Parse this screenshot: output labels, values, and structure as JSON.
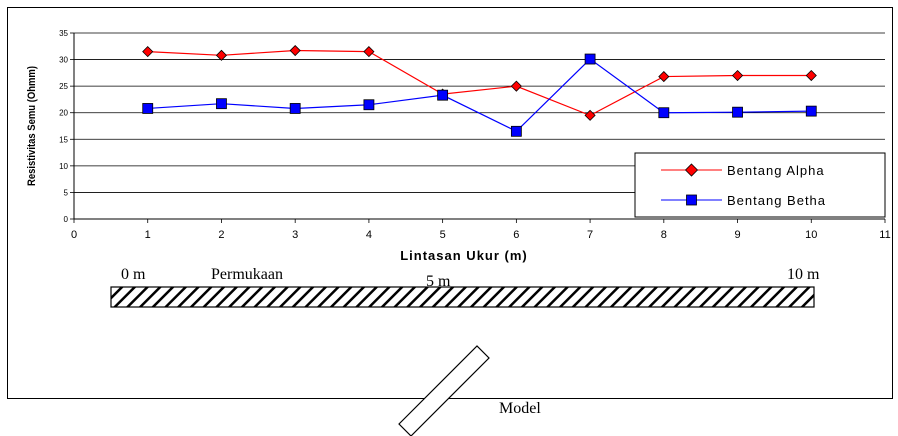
{
  "chart_data": {
    "type": "line",
    "xlabel": "Lintasan Ukur (m)",
    "ylabel": "Resistivitas Semu (Ohmm)",
    "xlim": [
      0,
      11
    ],
    "ylim": [
      0,
      35
    ],
    "x_ticks": [
      0,
      1,
      2,
      3,
      4,
      5,
      6,
      7,
      8,
      9,
      10,
      11
    ],
    "y_ticks": [
      0,
      5,
      10,
      15,
      20,
      25,
      30,
      35
    ],
    "grid": "horizontal",
    "legend_position": "bottom-right",
    "x": [
      1,
      2,
      3,
      4,
      5,
      6,
      7,
      8,
      9,
      10
    ],
    "series": [
      {
        "name": "Bentang Alpha",
        "color": "#ff0000",
        "marker": "diamond",
        "marker_color": "#ff0000",
        "values": [
          31.5,
          30.8,
          31.7,
          31.5,
          23.5,
          25.0,
          19.5,
          26.8,
          27.0,
          27.0
        ]
      },
      {
        "name": "Bentang Betha",
        "color": "#0000ff",
        "marker": "square",
        "marker_color": "#0000ff",
        "values": [
          20.8,
          21.7,
          20.8,
          21.5,
          23.3,
          16.5,
          30.1,
          20.0,
          20.1,
          20.3
        ]
      }
    ]
  },
  "diagram": {
    "label_start": "0 m",
    "label_surface": "Permukaan",
    "label_middle": "5 m",
    "label_end": "10 m",
    "label_model": "Model"
  }
}
